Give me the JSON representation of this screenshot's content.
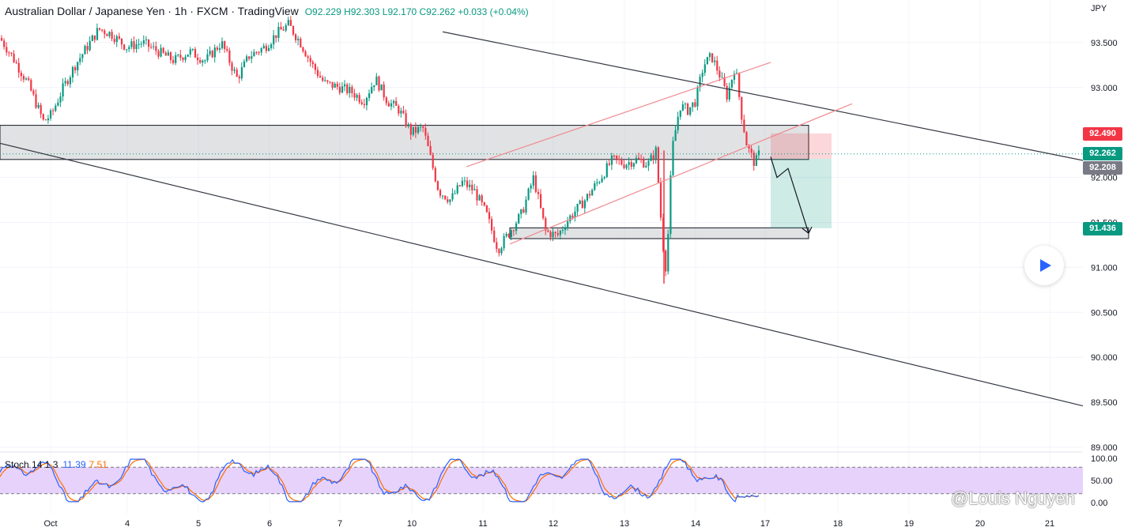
{
  "header": {
    "title": "Australian Dollar / Japanese Yen · 1h · FXCM · TradingView",
    "ohlc": "O92.229 H92.303 L92.170 C92.262 +0.033 (+0.04%)"
  },
  "price_axis": {
    "currency": "JPY",
    "labels": [
      "93.500",
      "93.000",
      "92.000",
      "91.500",
      "91.000",
      "90.500",
      "90.000",
      "89.500",
      "89.000"
    ]
  },
  "price_badges": [
    {
      "value": "92.490",
      "color": "#f23645"
    },
    {
      "value": "92.262",
      "color": "#089981"
    },
    {
      "value": "92.208",
      "color": "#787b86"
    },
    {
      "value": "91.436",
      "color": "#089981"
    }
  ],
  "stochastic": {
    "label": "Stoch 14 1 3",
    "k_value": "11.39",
    "d_value": "7.51",
    "axis_labels": [
      "100.00",
      "50.00",
      "0.00"
    ]
  },
  "time_axis": {
    "labels": [
      "Oct",
      "4",
      "5",
      "6",
      "7",
      "10",
      "11",
      "12",
      "13",
      "14",
      "17",
      "18",
      "19",
      "20",
      "21"
    ]
  },
  "watermark": "@Louis Nguyen",
  "colors": {
    "up": "#089981",
    "down": "#f23645",
    "stoch_band": "#e7d2fb",
    "k_line": "#2962ff",
    "d_line": "#ff6d00"
  },
  "chart_data": {
    "type": "candlestick",
    "symbol": "AUDJPY",
    "timeframe": "1h",
    "ylim": [
      89.0,
      93.6
    ],
    "x_dates": [
      "Oct 3",
      "Oct 4",
      "Oct 5",
      "Oct 6",
      "Oct 7",
      "Oct 10",
      "Oct 11",
      "Oct 12",
      "Oct 13",
      "Oct 14",
      "Oct 17"
    ],
    "path": [
      [
        0,
        93.55
      ],
      [
        15,
        93.35
      ],
      [
        35,
        93.05
      ],
      [
        55,
        92.62
      ],
      [
        65,
        92.7
      ],
      [
        80,
        93.0
      ],
      [
        95,
        93.25
      ],
      [
        110,
        93.45
      ],
      [
        125,
        93.65
      ],
      [
        140,
        93.6
      ],
      [
        160,
        93.45
      ],
      [
        180,
        93.5
      ],
      [
        200,
        93.4
      ],
      [
        220,
        93.3
      ],
      [
        240,
        93.4
      ],
      [
        260,
        93.3
      ],
      [
        280,
        93.5
      ],
      [
        300,
        93.1
      ],
      [
        315,
        93.35
      ],
      [
        335,
        93.45
      ],
      [
        350,
        93.6
      ],
      [
        365,
        93.7
      ],
      [
        380,
        93.5
      ],
      [
        395,
        93.25
      ],
      [
        410,
        93.05
      ],
      [
        430,
        93.0
      ],
      [
        445,
        92.95
      ],
      [
        460,
        92.85
      ],
      [
        475,
        93.1
      ],
      [
        490,
        92.85
      ],
      [
        505,
        92.75
      ],
      [
        520,
        92.5
      ],
      [
        535,
        92.55
      ],
      [
        545,
        92.2
      ],
      [
        555,
        91.85
      ],
      [
        570,
        91.75
      ],
      [
        585,
        91.95
      ],
      [
        600,
        91.85
      ],
      [
        615,
        91.6
      ],
      [
        630,
        91.2
      ],
      [
        645,
        91.4
      ],
      [
        660,
        91.6
      ],
      [
        675,
        92.0
      ],
      [
        690,
        91.4
      ],
      [
        705,
        91.35
      ],
      [
        720,
        91.55
      ],
      [
        740,
        91.75
      ],
      [
        760,
        92.0
      ],
      [
        775,
        92.2
      ],
      [
        790,
        92.15
      ],
      [
        805,
        92.2
      ],
      [
        820,
        92.15
      ],
      [
        830,
        92.3
      ],
      [
        838,
        91.3
      ],
      [
        843,
        90.95
      ],
      [
        850,
        92.3
      ],
      [
        860,
        92.8
      ],
      [
        870,
        92.75
      ],
      [
        880,
        92.85
      ],
      [
        890,
        93.25
      ],
      [
        900,
        93.35
      ],
      [
        910,
        93.15
      ],
      [
        920,
        92.9
      ],
      [
        930,
        93.25
      ],
      [
        938,
        92.7
      ],
      [
        945,
        92.35
      ],
      [
        955,
        92.15
      ],
      [
        960,
        92.26
      ]
    ],
    "stoch_k_last": 11.39,
    "stoch_d_last": 7.51,
    "annotations": {
      "descending_channel_upper": [
        [
          560,
          93.62
        ],
        [
          1370,
          92.19
        ]
      ],
      "descending_channel_lower": [
        [
          0,
          92.38
        ],
        [
          1370,
          89.46
        ]
      ],
      "ascending_channel_upper": [
        [
          590,
          92.12
        ],
        [
          975,
          93.28
        ]
      ],
      "ascending_channel_lower": [
        [
          645,
          91.26
        ],
        [
          1078,
          92.82
        ]
      ],
      "resistance_zone": [
        92.2,
        92.58
      ],
      "support_zone": [
        91.32,
        91.44
      ],
      "short_position": {
        "entry": 92.208,
        "stop": 92.49,
        "target": 91.436
      },
      "projection_arrow": [
        [
          975,
          92.23
        ],
        [
          983,
          92.0
        ],
        [
          997,
          92.1
        ],
        [
          1023,
          91.38
        ]
      ]
    }
  }
}
